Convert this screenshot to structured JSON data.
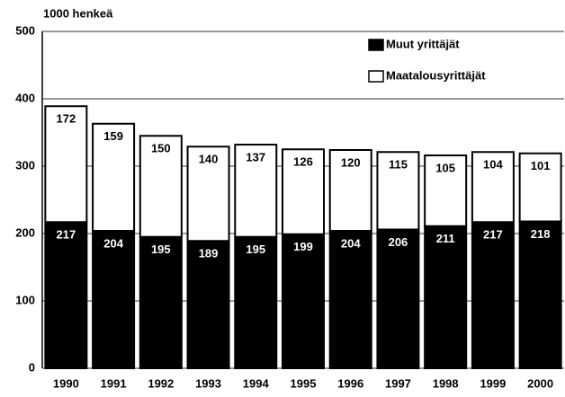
{
  "chart_data": {
    "type": "stacked_bar",
    "y_axis_label": "1000 henkeä",
    "categories": [
      "1990",
      "1991",
      "1992",
      "1993",
      "1994",
      "1995",
      "1996",
      "1997",
      "1998",
      "1999",
      "2000"
    ],
    "series": [
      {
        "name": "Muut yrittäjät",
        "color": "#000000",
        "values": [
          217,
          204,
          195,
          189,
          195,
          199,
          204,
          206,
          211,
          217,
          218
        ]
      },
      {
        "name": "Maatalousyrittäjät",
        "color": "#ffffff",
        "values": [
          172,
          159,
          150,
          140,
          137,
          126,
          120,
          115,
          105,
          104,
          101
        ]
      }
    ],
    "ylim": [
      0,
      500
    ],
    "yticks": [
      0,
      100,
      200,
      300,
      400,
      500
    ],
    "grid": true,
    "legend": "top-right"
  }
}
